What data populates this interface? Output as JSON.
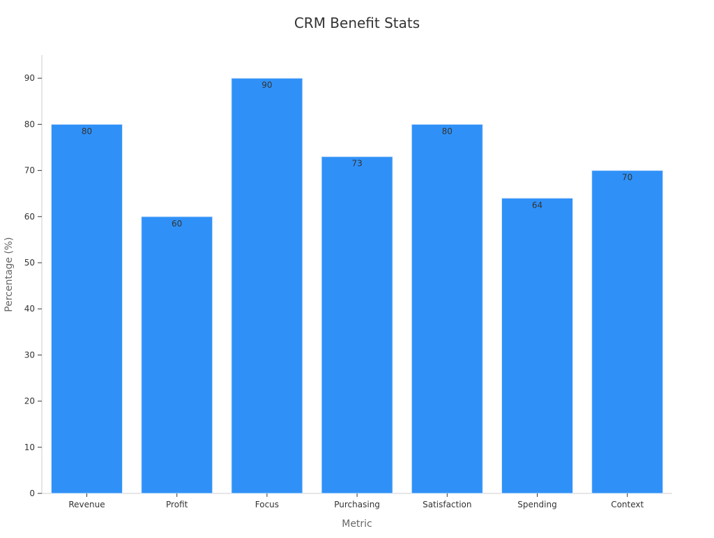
{
  "chart_data": {
    "type": "bar",
    "title": "CRM Benefit Stats",
    "xlabel": "Metric",
    "ylabel": "Percentage (%)",
    "categories": [
      "Revenue",
      "Profit",
      "Focus",
      "Purchasing",
      "Satisfaction",
      "Spending",
      "Context"
    ],
    "values": [
      80,
      60,
      90,
      73,
      80,
      64,
      70
    ],
    "ylim": [
      0,
      95
    ],
    "yticks": [
      0,
      10,
      20,
      30,
      40,
      50,
      60,
      70,
      80,
      90
    ],
    "grid": false,
    "legend": "none",
    "bar_color": "#2f91f8",
    "bar_edge_color": "#dbe9fb"
  }
}
